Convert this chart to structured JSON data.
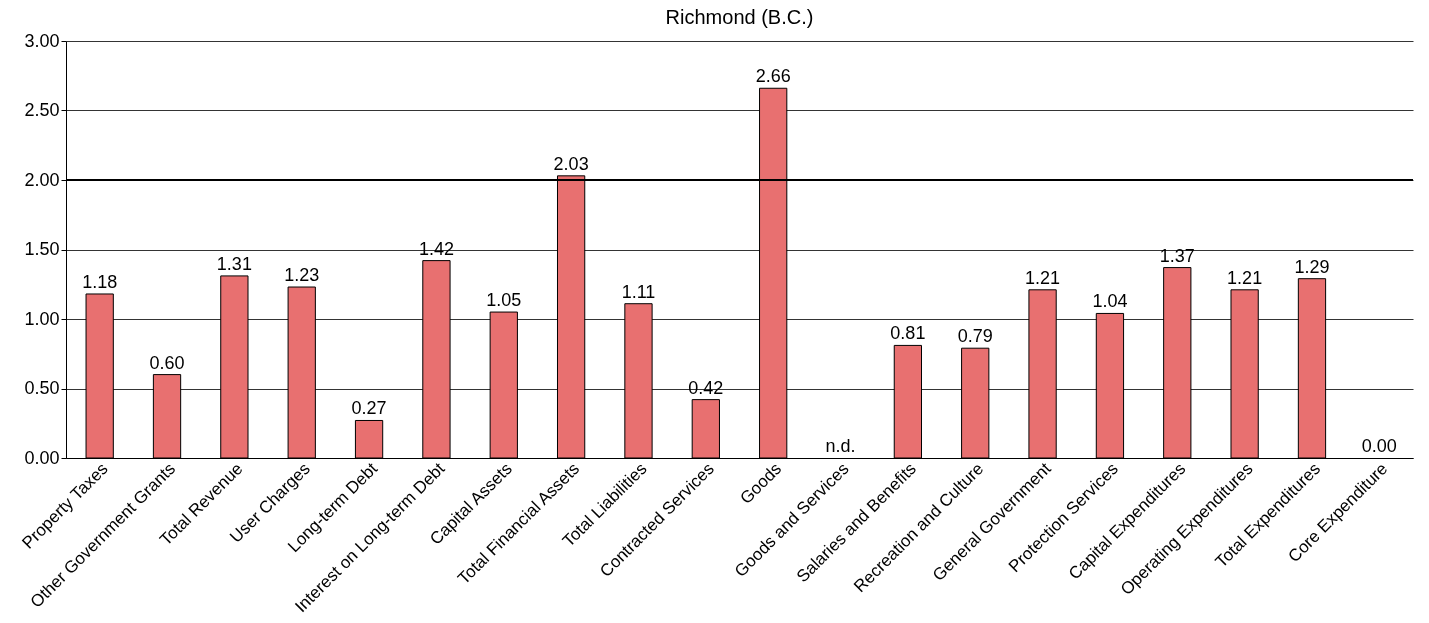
{
  "chart_data": {
    "type": "bar",
    "title": "Richmond (B.C.)",
    "categories": [
      "Property Taxes",
      "Other Government Grants",
      "Total Revenue",
      "User Charges",
      "Long-term Debt",
      "Interest on Long-term Debt",
      "Capital Assets",
      "Total Financial Assets",
      "Total Liabilities",
      "Contracted Services",
      "Goods",
      "Goods and Services",
      "Salaries and Benefits",
      "Recreation and Culture",
      "General Government",
      "Protection Services",
      "Capital Expenditures",
      "Operating Expenditures",
      "Total Expenditures",
      "Core Expenditure"
    ],
    "values": [
      1.18,
      0.6,
      1.31,
      1.23,
      0.27,
      1.42,
      1.05,
      2.03,
      1.11,
      0.42,
      2.66,
      null,
      0.81,
      0.79,
      1.21,
      1.04,
      1.37,
      1.21,
      1.29,
      0.0
    ],
    "value_labels": [
      "1.18",
      "0.60",
      "1.31",
      "1.23",
      "0.27",
      "1.42",
      "1.05",
      "2.03",
      "1.11",
      "0.42",
      "2.66",
      "n.d.",
      "0.81",
      "0.79",
      "1.21",
      "1.04",
      "1.37",
      "1.21",
      "1.29",
      "0.00"
    ],
    "color": "#e87070",
    "ylim": [
      0,
      3
    ],
    "yticks": [
      {
        "value": 0,
        "label": "0.00"
      },
      {
        "value": 0.5,
        "label": "0.50"
      },
      {
        "value": 1,
        "label": "1.00"
      },
      {
        "value": 1.5,
        "label": "1.50"
      },
      {
        "value": 2,
        "label": "2.00"
      },
      {
        "value": 2.5,
        "label": "2.50"
      },
      {
        "value": 3,
        "label": "3.00"
      }
    ],
    "grid": "y",
    "ref_lines": [
      {
        "axis": "y",
        "value": 2,
        "color": "#000000"
      }
    ]
  }
}
